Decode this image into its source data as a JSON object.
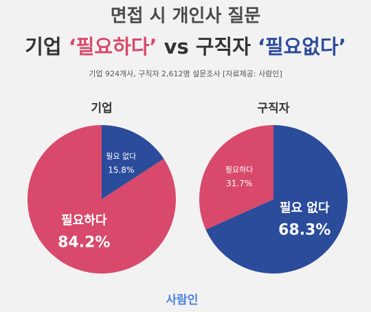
{
  "header": {
    "title": "면접 시 개인사 질문",
    "headline": [
      {
        "text": "기업 ",
        "color": "#333333"
      },
      {
        "text": "‘필요하다’",
        "color": "#d9496b"
      },
      {
        "text": " vs 구직자 ",
        "color": "#333333"
      },
      {
        "text": "‘필요없다’",
        "color": "#2b4b9b"
      }
    ],
    "note": "기업 924개사, 구직자 2,612명 설문조사  [자료제공: 사람인]"
  },
  "footer": {
    "logo": "사람인"
  },
  "chart_data": [
    {
      "type": "pie",
      "title": "기업",
      "categories": [
        "필요 없다",
        "필요하다"
      ],
      "values": [
        15.8,
        84.2
      ],
      "value_labels": [
        "15.8%",
        "84.2%"
      ],
      "colors": [
        "#2b4b9b",
        "#d9496b"
      ]
    },
    {
      "type": "pie",
      "title": "구직자",
      "categories": [
        "필요 없다",
        "필요하다"
      ],
      "values": [
        68.3,
        31.7
      ],
      "value_labels": [
        "68.3%",
        "31.7%"
      ],
      "colors": [
        "#2b4b9b",
        "#d9496b"
      ]
    }
  ]
}
